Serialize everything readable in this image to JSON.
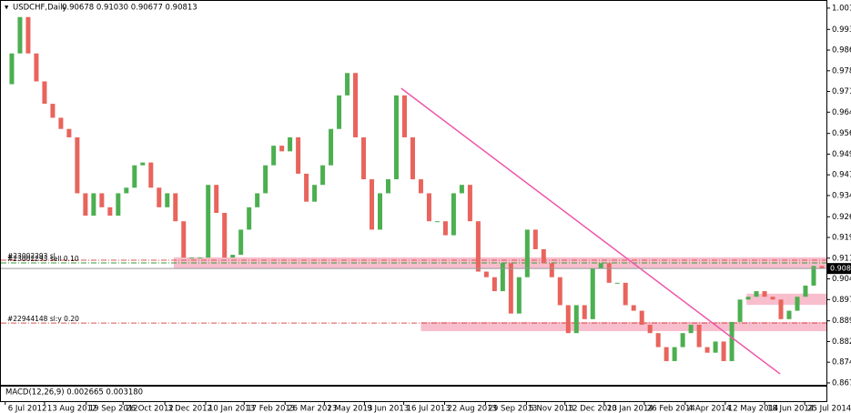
{
  "chart_data": {
    "type": "candlestick",
    "title": "USDCHF,Daily",
    "subtitle": "0.90678 0.91030 0.90677 0.90813",
    "up_color": "#4caf50",
    "down_color": "#e8645c",
    "values": [
      0.974,
      0.985,
      0.998,
      0.985,
      0.975,
      0.967,
      0.962,
      0.958,
      0.955,
      0.935,
      0.927,
      0.935,
      0.93,
      0.927,
      0.935,
      0.937,
      0.945,
      0.946,
      0.937,
      0.93,
      0.935,
      0.925,
      0.912,
      0.912,
      0.912,
      0.938,
      0.928,
      0.912,
      0.913,
      0.922,
      0.93,
      0.935,
      0.945,
      0.952,
      0.95,
      0.955,
      0.942,
      0.932,
      0.938,
      0.945,
      0.958,
      0.97,
      0.978,
      0.955,
      0.94,
      0.922,
      0.935,
      0.94,
      0.97,
      0.955,
      0.94,
      0.935,
      0.925,
      0.925,
      0.92,
      0.935,
      0.938,
      0.925,
      0.907,
      0.905,
      0.9,
      0.91,
      0.892,
      0.905,
      0.922,
      0.915,
      0.91,
      0.905,
      0.895,
      0.885,
      0.895,
      0.89,
      0.908,
      0.91,
      0.903,
      0.903,
      0.895,
      0.893,
      0.888,
      0.885,
      0.88,
      0.875,
      0.88,
      0.885,
      0.888,
      0.88,
      0.878,
      0.882,
      0.875,
      0.889,
      0.897,
      0.898,
      0.9,
      0.898,
      0.897,
      0.89,
      0.893,
      0.898,
      0.902,
      0.909,
      0.908
    ],
    "xlim": [
      -0.33,
      100.56
    ],
    "xticks": [
      {
        "value": 0.2,
        "label": "6 Jul 2012"
      },
      {
        "value": 5,
        "label": "13 Aug 2012"
      },
      {
        "value": 10.1,
        "label": "19 Sep 2012"
      },
      {
        "value": 14.6,
        "label": "26 Oct 2012"
      },
      {
        "value": 19.7,
        "label": "3 Dec 2012"
      },
      {
        "value": 24.7,
        "label": "10 Jan 2013"
      },
      {
        "value": 29.4,
        "label": "17 Feb 2013"
      },
      {
        "value": 34.4,
        "label": "26 Mar 2013"
      },
      {
        "value": 39.2,
        "label": "2 May 2013"
      },
      {
        "value": 44.1,
        "label": "9 Jun 2013"
      },
      {
        "value": 48.9,
        "label": "16 Jul 2013"
      },
      {
        "value": 53.9,
        "label": "22 Aug 2013"
      },
      {
        "value": 58.9,
        "label": "29 Sep 2013"
      },
      {
        "value": 63.9,
        "label": "5 Nov 2013"
      },
      {
        "value": 68.6,
        "label": "12 Dec 2013"
      },
      {
        "value": 73.4,
        "label": "20 Jan 2014"
      },
      {
        "value": 78.3,
        "label": "26 Feb 2014"
      },
      {
        "value": 83.3,
        "label": "4 Apr 2014"
      },
      {
        "value": 88.2,
        "label": "12 May 2014"
      },
      {
        "value": 93,
        "label": "18 Jun 2014"
      },
      {
        "value": 97.9,
        "label": "25 Jul 2014"
      }
    ],
    "ylim": [
      0.8662,
      1.0041
    ],
    "yticks": [
      1.0012,
      0.9936,
      0.9862,
      0.9788,
      0.9714,
      {
        "value": 0.964,
        "label": "0.9640"
      },
      0.9564,
      {
        "value": 0.949,
        "label": "0.9490"
      },
      0.9416,
      0.9342,
      0.9266,
      0.9192,
      0.9118,
      0.9044,
      {
        "value": 0.897,
        "label": "0.8970"
      },
      0.8894,
      {
        "value": 0.882,
        "label": "0.8820"
      },
      0.8746,
      0.8672
    ],
    "current_price": 0.9081,
    "levels": [
      {
        "label": "#23002293 sl",
        "value": 0.9111,
        "color": "#d9534f"
      },
      {
        "label": "#23002293 sell 0.10",
        "value": 0.9101,
        "color": "#3a9a3a"
      },
      {
        "label": "#22944148 sl:y 0.20",
        "value": 0.8886,
        "color": "#d9534f"
      }
    ],
    "zones": [
      {
        "x": [
          20.8,
          100.56
        ],
        "y": [
          0.9082,
          0.9121
        ]
      },
      {
        "x": [
          51,
          100.56
        ],
        "y": [
          0.8857,
          0.889
        ]
      },
      {
        "x": [
          90.8,
          100.56
        ],
        "y": [
          0.8951,
          0.8991
        ]
      }
    ],
    "zone_color": "#f7b3c4",
    "trendline": {
      "x": [
        48.6,
        94.9
      ],
      "y": [
        0.9725,
        0.8704
      ],
      "color": "#ee55aa"
    },
    "macd_label": "MACD(12,26,9) 0.002665 0.003180"
  }
}
